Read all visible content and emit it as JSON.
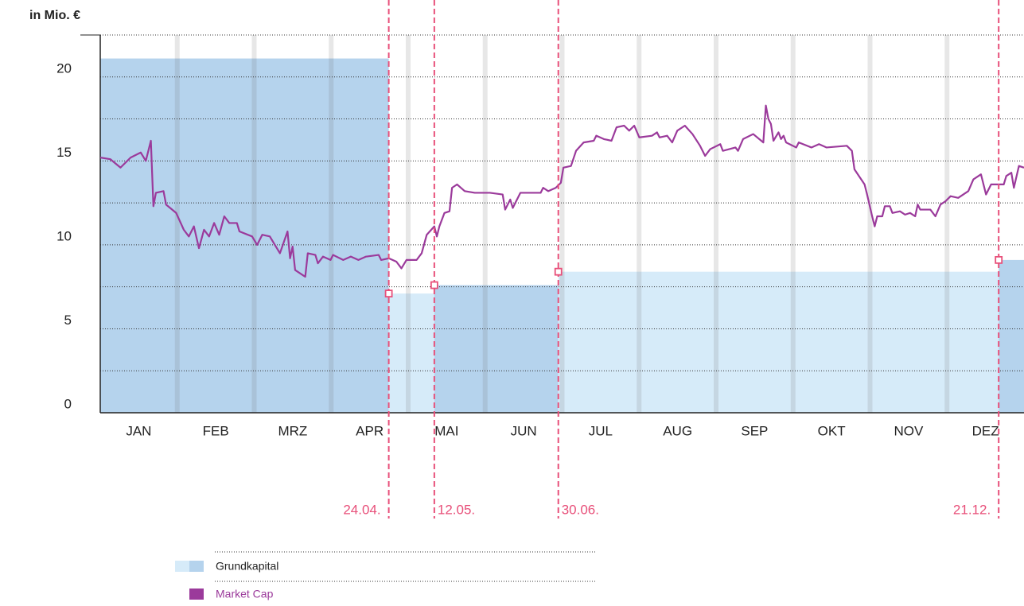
{
  "chart_data": {
    "type": "line",
    "y_axis_label": "in Mio. €",
    "categories": [
      "JAN",
      "FEB",
      "MRZ",
      "APR",
      "MAI",
      "JUN",
      "JUL",
      "AUG",
      "SEP",
      "OKT",
      "NOV",
      "DEZ"
    ],
    "xlim": [
      0,
      365
    ],
    "ylim": [
      0,
      22.5
    ],
    "yticks": [
      0,
      5,
      10,
      15,
      20
    ],
    "minor_yticks": [
      2.5,
      7.5,
      12.5,
      17.5,
      22.5
    ],
    "grid": true,
    "events": {
      "x": [
        114,
        132,
        181,
        355
      ],
      "labels": [
        "24.04.",
        "12.05.",
        "30.06.",
        "21.12."
      ],
      "color": "#e8507a"
    },
    "steps": {
      "name": "Grundkapital",
      "colors": [
        "#b5d3ed",
        "#d6ebf9",
        "#b5d3ed",
        "#d6ebf9",
        "#b5d3ed"
      ],
      "x": [
        0,
        114,
        132,
        181,
        355
      ],
      "values": [
        21.1,
        7.1,
        7.6,
        8.4,
        9.1
      ]
    },
    "series": [
      {
        "name": "Market Cap",
        "color": "#9b3a9b",
        "x": [
          0,
          4,
          8,
          12,
          16,
          18,
          20,
          21,
          22,
          25,
          26,
          30,
          33,
          35,
          37,
          39,
          41,
          43,
          45,
          47,
          49,
          51,
          54,
          55,
          60,
          62,
          64,
          67,
          69,
          71,
          74,
          75,
          76,
          77,
          81,
          82,
          85,
          86,
          88,
          91,
          92,
          96,
          99,
          102,
          105,
          110,
          111,
          114,
          117,
          119,
          121,
          125,
          127,
          129,
          132,
          133,
          134,
          136,
          138,
          139,
          141,
          144,
          148,
          154,
          159,
          160,
          162,
          163,
          166,
          174,
          175,
          177,
          180,
          182,
          183,
          186,
          188,
          191,
          195,
          196,
          199,
          202,
          204,
          207,
          209,
          211,
          213,
          218,
          220,
          221,
          224,
          226,
          228,
          231,
          234,
          237,
          239,
          241,
          245,
          246,
          251,
          252,
          254,
          258,
          262,
          263,
          264,
          265,
          266,
          268,
          269,
          270,
          271,
          275,
          276,
          281,
          284,
          287,
          295,
          297,
          298,
          302,
          303,
          305,
          306,
          307,
          309,
          310,
          312,
          313,
          316,
          318,
          320,
          322,
          323,
          324,
          328,
          330,
          332,
          334,
          336,
          339,
          341,
          343,
          345,
          348,
          350,
          352,
          357,
          358,
          360,
          361,
          363,
          365
        ],
        "values": [
          15.2,
          15.1,
          14.6,
          15.2,
          15.5,
          15.0,
          16.2,
          12.3,
          13.1,
          13.2,
          12.4,
          11.9,
          10.9,
          10.5,
          11.1,
          9.8,
          10.9,
          10.5,
          11.3,
          10.6,
          11.7,
          11.3,
          11.3,
          10.8,
          10.5,
          10.0,
          10.6,
          10.5,
          10.0,
          9.5,
          10.8,
          9.2,
          9.9,
          8.5,
          8.1,
          9.5,
          9.4,
          8.9,
          9.3,
          9.1,
          9.4,
          9.1,
          9.3,
          9.1,
          9.3,
          9.4,
          9.1,
          9.2,
          9.0,
          8.6,
          9.1,
          9.1,
          9.5,
          10.6,
          11.1,
          10.5,
          11.1,
          11.9,
          12.0,
          13.4,
          13.6,
          13.2,
          13.1,
          13.1,
          13.0,
          12.1,
          12.7,
          12.2,
          13.1,
          13.1,
          13.4,
          13.2,
          13.4,
          13.7,
          14.6,
          14.7,
          15.6,
          16.1,
          16.2,
          16.5,
          16.3,
          16.2,
          17.0,
          17.1,
          16.8,
          17.1,
          16.4,
          16.5,
          16.7,
          16.4,
          16.5,
          16.1,
          16.8,
          17.1,
          16.6,
          15.9,
          15.3,
          15.7,
          16.0,
          15.6,
          15.8,
          15.6,
          16.3,
          16.6,
          16.1,
          18.3,
          17.5,
          17.2,
          16.2,
          16.7,
          16.3,
          16.5,
          16.1,
          15.8,
          16.1,
          15.8,
          16.0,
          15.8,
          15.9,
          15.6,
          14.5,
          13.6,
          13.0,
          11.7,
          11.1,
          11.7,
          11.7,
          12.3,
          12.3,
          11.9,
          12.0,
          11.8,
          11.9,
          11.7,
          12.4,
          12.1,
          12.1,
          11.7,
          12.4,
          12.6,
          12.9,
          12.8,
          13.0,
          13.2,
          13.9,
          14.2,
          13.0,
          13.6,
          13.6,
          14.1,
          14.3,
          13.4,
          14.7,
          14.6
        ]
      }
    ]
  }
}
